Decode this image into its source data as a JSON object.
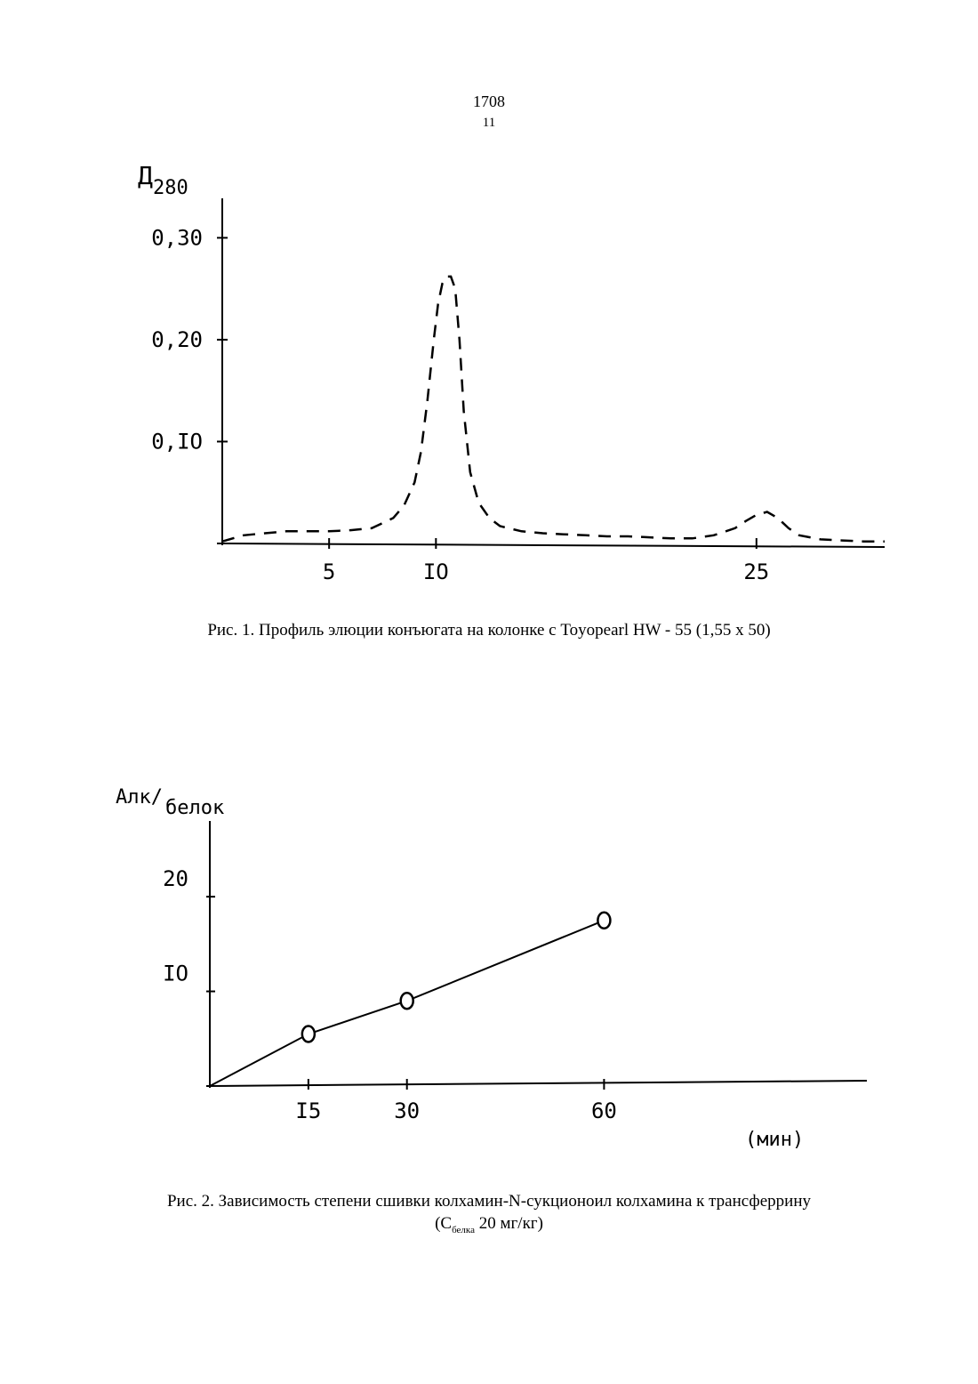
{
  "header": {
    "number": "1708",
    "page": "11"
  },
  "chart_data": [
    {
      "type": "line",
      "line_style": "dashed",
      "ylabel_main": "Д",
      "ylabel_sub": "280",
      "yticks": [
        "0,30",
        "0,20",
        "0,IO"
      ],
      "ytick_values": [
        0.3,
        0.2,
        0.1
      ],
      "xticks": [
        "5",
        "IO",
        "25"
      ],
      "xtick_values": [
        5,
        10,
        25
      ],
      "xlim": [
        0,
        31
      ],
      "ylim": [
        0,
        0.33
      ],
      "x": [
        0,
        1,
        2,
        3,
        4,
        5,
        6,
        7,
        8,
        8.5,
        9,
        9.3,
        9.6,
        9.9,
        10.1,
        10.3,
        10.5,
        10.7,
        10.9,
        11.1,
        11.3,
        11.6,
        12,
        12.5,
        13,
        14,
        15,
        16,
        17,
        18,
        19,
        20,
        21,
        22,
        23,
        24,
        24.5,
        25,
        25.5,
        26,
        26.5,
        27,
        28,
        29,
        30,
        31
      ],
      "y": [
        0.002,
        0.008,
        0.01,
        0.012,
        0.012,
        0.012,
        0.013,
        0.015,
        0.025,
        0.037,
        0.06,
        0.09,
        0.14,
        0.2,
        0.235,
        0.255,
        0.262,
        0.262,
        0.25,
        0.2,
        0.13,
        0.07,
        0.04,
        0.025,
        0.017,
        0.012,
        0.01,
        0.009,
        0.008,
        0.007,
        0.007,
        0.006,
        0.005,
        0.005,
        0.008,
        0.015,
        0.022,
        0.028,
        0.031,
        0.025,
        0.015,
        0.008,
        0.004,
        0.003,
        0.002,
        0.002
      ],
      "caption": "Рис. 1. Профиль элюции конъюгата на колонке с Toyopearl HW - 55 (1,55 x 50)"
    },
    {
      "type": "line",
      "marker": "circle",
      "ylabel_main": "Алк/",
      "ylabel_sub": "белок",
      "yticks": [
        "20",
        "IO"
      ],
      "ytick_values": [
        20,
        10
      ],
      "xticks": [
        "I5",
        "30",
        "60"
      ],
      "xtick_values": [
        15,
        30,
        60
      ],
      "xlabel": "(мин)",
      "xlim": [
        0,
        100
      ],
      "ylim": [
        0,
        28
      ],
      "x": [
        0,
        15,
        30,
        60
      ],
      "y": [
        0,
        5.5,
        9,
        17.5
      ],
      "caption_line1": "Рис. 2. Зависимость степени сшивки колхамин-N-сукционоил колхамина к трансферрину",
      "caption_line2_pre": "(С",
      "caption_line2_sub": "белка",
      "caption_line2_post": " 20 мг/кг)"
    }
  ]
}
